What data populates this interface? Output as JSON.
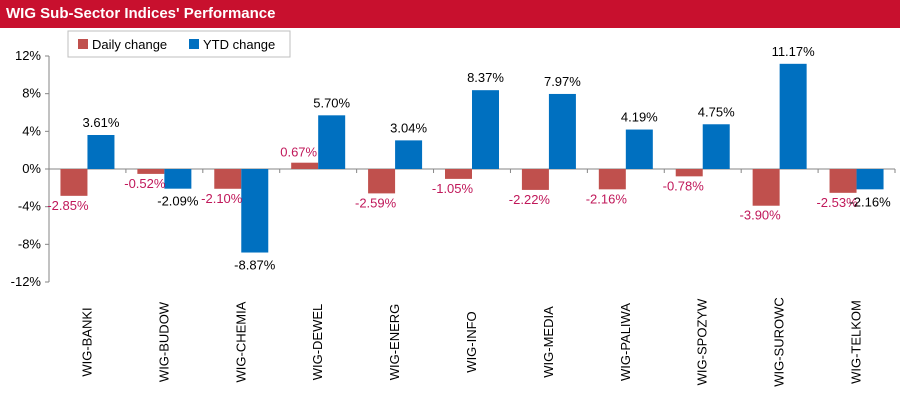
{
  "header": {
    "title": "WIG Sub-Sector Indices' Performance"
  },
  "chart_data": {
    "type": "bar",
    "title": "WIG Sub-Sector Indices' Performance",
    "categories": [
      "WIG-BANKI",
      "WIG-BUDOW",
      "WIG-CHEMIA",
      "WIG-DEWEL",
      "WIG-ENERG",
      "WIG-INFO",
      "WIG-MEDIA",
      "WIG-PALIWA",
      "WIG-SPOZYW",
      "WIG-SUROWC",
      "WIG-TELKOM"
    ],
    "series": [
      {
        "name": "Daily change",
        "color": "#c0504d",
        "values": [
          -2.85,
          -0.52,
          -2.1,
          0.67,
          -2.59,
          -1.05,
          -2.22,
          -2.16,
          -0.78,
          -3.9,
          -2.53
        ],
        "labels": [
          "-2.85%",
          "-0.52%",
          "-2.10%",
          "0.67%",
          "-2.59%",
          "-1.05%",
          "-2.22%",
          "-2.16%",
          "-0.78%",
          "-3.90%",
          "-2.53%"
        ]
      },
      {
        "name": "YTD change",
        "color": "#0070c0",
        "values": [
          3.61,
          -2.09,
          -8.87,
          5.7,
          3.04,
          8.37,
          7.97,
          4.19,
          4.75,
          11.17,
          -2.16
        ],
        "labels": [
          "3.61%",
          "-2.09%",
          "-8.87%",
          "5.70%",
          "3.04%",
          "8.37%",
          "7.97%",
          "4.19%",
          "4.75%",
          "11.17%",
          "-2.16%"
        ]
      }
    ],
    "ylim": [
      -12,
      12
    ],
    "yticks": [
      12,
      8,
      4,
      0,
      -4,
      -8,
      -12
    ],
    "ytick_labels": [
      "12%",
      "8%",
      "4%",
      "0%",
      "-4%",
      "-8%",
      "-12%"
    ],
    "legend_position": "top-left",
    "grid": false
  }
}
